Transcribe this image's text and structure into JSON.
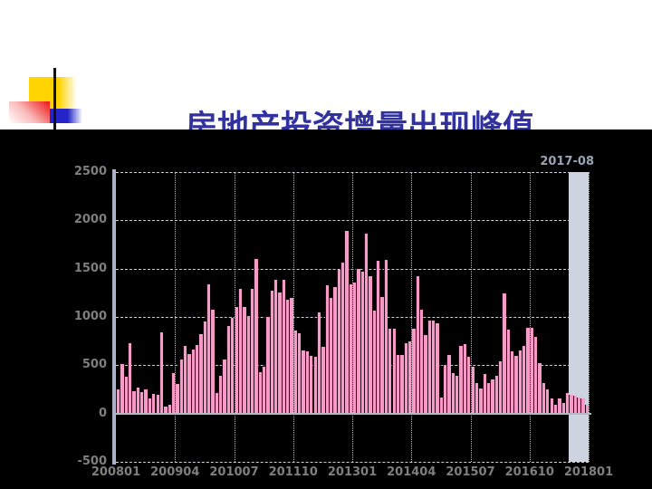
{
  "slide": {
    "title": "房地产投资增量出现峰值",
    "title_color": "#32329f",
    "background": "#ffffff",
    "logo_colors": {
      "yellow": "#ffd400",
      "red": "#ee1515",
      "blue": "#2424c8",
      "line": "#121212"
    }
  },
  "chart_data": {
    "type": "bar",
    "title": "",
    "xlabel": "",
    "ylabel": "",
    "x_start": "2008-01",
    "x_end": "2017-12",
    "frequency": "monthly",
    "values": [
      250,
      510,
      385,
      730,
      230,
      265,
      225,
      250,
      160,
      205,
      190,
      840,
      75,
      90,
      420,
      310,
      560,
      700,
      620,
      660,
      710,
      820,
      950,
      1340,
      1075,
      215,
      390,
      560,
      905,
      990,
      1105,
      1290,
      1105,
      1010,
      1290,
      1600,
      430,
      480,
      1000,
      1270,
      1380,
      1255,
      1380,
      1180,
      1200,
      860,
      835,
      655,
      640,
      600,
      585,
      1050,
      690,
      1330,
      1200,
      1310,
      1490,
      1560,
      1890,
      1340,
      1355,
      1500,
      1470,
      1860,
      1420,
      1065,
      1580,
      1210,
      1590,
      880,
      880,
      610,
      610,
      730,
      745,
      880,
      1420,
      1075,
      815,
      965,
      960,
      935,
      165,
      500,
      605,
      420,
      390,
      700,
      720,
      590,
      480,
      315,
      260,
      410,
      315,
      350,
      395,
      540,
      1245,
      870,
      645,
      600,
      650,
      700,
      885,
      890,
      790,
      520,
      320,
      250,
      160,
      90,
      160,
      110,
      215,
      190,
      180,
      170,
      160,
      90
    ],
    "x_ticks": [
      "200801",
      "200904",
      "201007",
      "201110",
      "201301",
      "201404",
      "201507",
      "201610",
      "201801"
    ],
    "y_ticks": [
      "2500",
      "2000",
      "1500",
      "1000",
      "500",
      "0",
      "-500"
    ],
    "ylim": [
      -500,
      2500
    ],
    "grid": true,
    "legend": "none",
    "bar_color": "#f899c8",
    "plot_background": "#000000",
    "highlight": {
      "label": "2017-08",
      "start_index": 115,
      "end_index": 120,
      "color": "#ced3e0"
    }
  }
}
